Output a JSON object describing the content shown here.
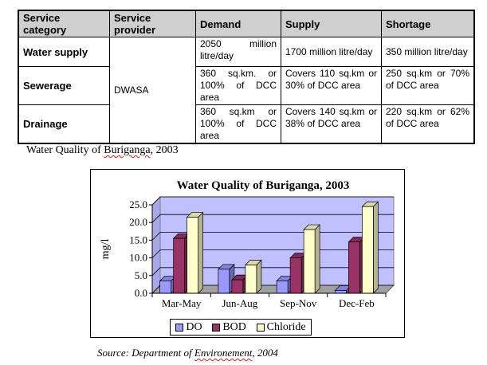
{
  "table": {
    "headers": [
      "Service category",
      "Service provider",
      "Demand",
      "Supply",
      "Shortage"
    ],
    "provider": "DWASA",
    "rows": [
      {
        "category": "Water supply",
        "demand": "2050 million litre/day",
        "supply": "1700 million litre/day",
        "shortage": "350 million litre/day"
      },
      {
        "category": "Sewerage",
        "demand": "360 sq.km. or 100% of DCC area",
        "supply": "Covers 110 sq.km or 30% of DCC area",
        "shortage": "250 sq.km or 70% of DCC area"
      },
      {
        "category": "Drainage",
        "demand": "360 sq.km or 100% of DCC area",
        "supply": "Covers 140 sq.km or 38% of DCC area",
        "shortage": "220 sq.km or 62% of DCC area"
      }
    ]
  },
  "heading": {
    "prefix": "Water Quality of ",
    "underlined": "Buriganga",
    "suffix": ", 2003"
  },
  "source": {
    "prefix": "Source: Department  of ",
    "underlined": "Environement",
    "suffix": ", 2004"
  },
  "chart_data": {
    "type": "bar",
    "title": "Water Quality of Buriganga, 2003",
    "ylabel": "mg/l",
    "xlabel": "",
    "categories": [
      "Mar-May",
      "Jun-Aug",
      "Sep-Nov",
      "Dec-Feb"
    ],
    "ylim": [
      0,
      25
    ],
    "yticks": [
      "0.0",
      "5.0",
      "10.0",
      "15.0",
      "20.0",
      "25.0"
    ],
    "grid": true,
    "legend_position": "bottom",
    "series": [
      {
        "name": "DO",
        "values": [
          3.5,
          6.8,
          3.5,
          0.8
        ],
        "color": "#9999ff"
      },
      {
        "name": "BOD",
        "values": [
          15.5,
          3.8,
          10.0,
          14.5
        ],
        "color": "#993366"
      },
      {
        "name": "Chloride",
        "values": [
          21.5,
          8.0,
          18.0,
          24.5
        ],
        "color": "#ffffcc"
      }
    ],
    "plot_background": "#c0c0ff"
  }
}
